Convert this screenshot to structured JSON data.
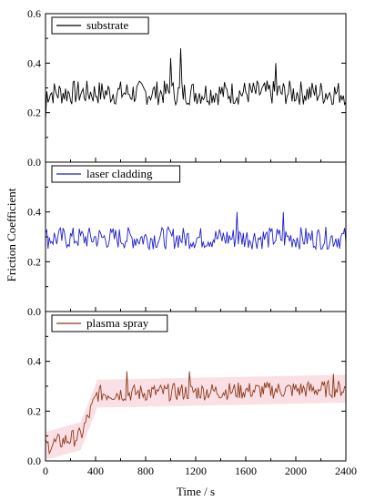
{
  "chart_data": {
    "type": "line",
    "layout": "three vertically stacked panels sharing the x axis",
    "xlabel": "Time / s",
    "ylabel": "Friction Coefficient",
    "xlim": [
      0,
      2400
    ],
    "ylim": [
      0.0,
      0.6
    ],
    "x_ticks": [
      0,
      400,
      800,
      1200,
      1600,
      2000,
      2400
    ],
    "y_ticks": [
      0.0,
      0.2,
      0.4,
      0.6
    ],
    "grid": false,
    "legend_position": "top-left of each panel",
    "sample_interval_s": 10,
    "series": [
      {
        "name": "substrate",
        "color": "#000000",
        "mean": 0.28,
        "noise_amplitude": 0.05,
        "peaks": [
          {
            "x": 1085,
            "y": 0.46
          },
          {
            "x": 1000,
            "y": 0.42
          },
          {
            "x": 1840,
            "y": 0.4
          }
        ]
      },
      {
        "name": "laser cladding",
        "color": "#1f1fc9",
        "mean": 0.295,
        "noise_amplitude": 0.045,
        "peaks": [
          {
            "x": 1530,
            "y": 0.4
          },
          {
            "x": 1900,
            "y": 0.4
          }
        ]
      },
      {
        "name": "plasma spray",
        "color": "#8b3a1a",
        "band_color": "#f5b8c4",
        "segments": [
          {
            "x_start": 0,
            "x_end": 280,
            "y_start": 0.06,
            "y_end": 0.1
          },
          {
            "x_start": 280,
            "x_end": 400,
            "y_start": 0.1,
            "y_end": 0.25
          },
          {
            "x_start": 400,
            "x_end": 2400,
            "y_start": 0.27,
            "y_end": 0.29
          }
        ],
        "noise_amplitude": 0.035,
        "peaks": [
          {
            "x": 650,
            "y": 0.36
          },
          {
            "x": 1150,
            "y": 0.36
          },
          {
            "x": 2300,
            "y": 0.35
          }
        ]
      }
    ]
  }
}
